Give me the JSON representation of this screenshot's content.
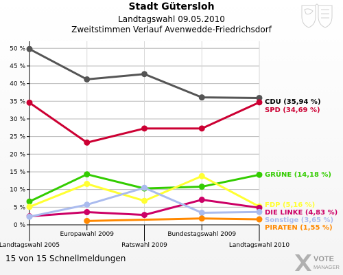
{
  "header": {
    "title": "Stadt Gütersloh",
    "subtitle": "Landtagswahl 09.05.2010",
    "subtitle2": "Zweitstimmen Verlauf Avenwedde-Friedrichsdorf"
  },
  "footer": {
    "status": "15 von 15 Schnellmeldungen",
    "logo_line1": "VOTE",
    "logo_line2": "MANAGER"
  },
  "colors": {
    "background": "#ffffff",
    "grid": "#999999"
  },
  "chart_data": {
    "type": "line",
    "title": "Stadt Gütersloh",
    "subtitle": "Landtagswahl 09.05.2010 – Zweitstimmen Verlauf Avenwedde-Friedrichsdorf",
    "xlabel": "",
    "ylabel": "",
    "ylim": [
      0,
      52
    ],
    "yticks": [
      0,
      5,
      10,
      15,
      20,
      25,
      30,
      35,
      40,
      45,
      50
    ],
    "ytick_labels": [
      "0 %",
      "5 %",
      "10 %",
      "15 %",
      "20 %",
      "25 %",
      "30 %",
      "35 %",
      "40 %",
      "45 %",
      "50 %"
    ],
    "categories": [
      "Landtagswahl 2005",
      "Europawahl 2009",
      "Ratswahl 2009",
      "Bundestagswahl 2009",
      "Landtagswahl 2010"
    ],
    "grid": true,
    "legend": "right, inline labels at line ends",
    "series": [
      {
        "name": "CDU",
        "label": "CDU (35,94 %)",
        "color": "#555555",
        "label_color": "#000000",
        "values": [
          49.8,
          41.2,
          42.7,
          36.1,
          35.94
        ]
      },
      {
        "name": "SPD",
        "label": "SPD (34,69 %)",
        "color": "#cc0033",
        "label_color": "#cc0033",
        "values": [
          34.6,
          23.3,
          27.3,
          27.3,
          34.69
        ]
      },
      {
        "name": "GRÜNE",
        "label": "GRÜNE (14,18 %)",
        "color": "#33cc00",
        "label_color": "#33cc00",
        "values": [
          6.6,
          14.3,
          10.3,
          10.8,
          14.18
        ]
      },
      {
        "name": "FDP",
        "label": "FDP (5,16 %)",
        "color": "#ffff33",
        "label_color": "#ffff33",
        "values": [
          5.1,
          11.6,
          6.8,
          13.8,
          5.16
        ]
      },
      {
        "name": "DIE LINKE",
        "label": "DIE LINKE (4,83 %)",
        "color": "#cc0066",
        "label_color": "#cc0066",
        "values": [
          2.4,
          3.6,
          2.8,
          7.1,
          4.83
        ]
      },
      {
        "name": "Sonstige",
        "label": "Sonstige (3,65 %)",
        "color": "#aabbee",
        "label_color": "#aabbee",
        "values": [
          2.3,
          5.7,
          10.5,
          3.4,
          3.65
        ]
      },
      {
        "name": "PIRATEN",
        "label": "PIRATEN (1,55 %)",
        "color": "#ff8800",
        "label_color": "#ff8800",
        "values": [
          null,
          1.1,
          null,
          1.8,
          1.55
        ]
      }
    ]
  }
}
